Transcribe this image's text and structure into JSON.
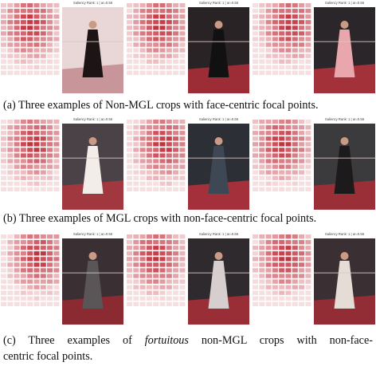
{
  "panels": [
    {
      "labels": [
        "Saliency Rank: 1 | ar=0.56",
        "Saliency Rank: 1 | ar=0.56",
        "Saliency Rank: 1 | ar=0.56"
      ],
      "caption": [
        "(a) Three examples of Non-MGL crops with face-centric focal points."
      ]
    },
    {
      "labels": [
        "Saliency Rank: 1 | ar=0.56",
        "Saliency Rank: 1 | ar=0.56",
        "Saliency Rank: 1 | ar=0.56"
      ],
      "caption": [
        "(b) Three examples of MGL crops with non-face-centric focal points."
      ]
    },
    {
      "labels": [
        "Saliency Rank: 1 | ar=0.56",
        "Saliency Rank: 1 | ar=0.56",
        "Saliency Rank: 1 | ar=0.56"
      ],
      "caption": [
        "(c) Three examples of ",
        "fortuitous",
        " non-MGL crops with non-face-",
        "centric focal points."
      ]
    }
  ]
}
